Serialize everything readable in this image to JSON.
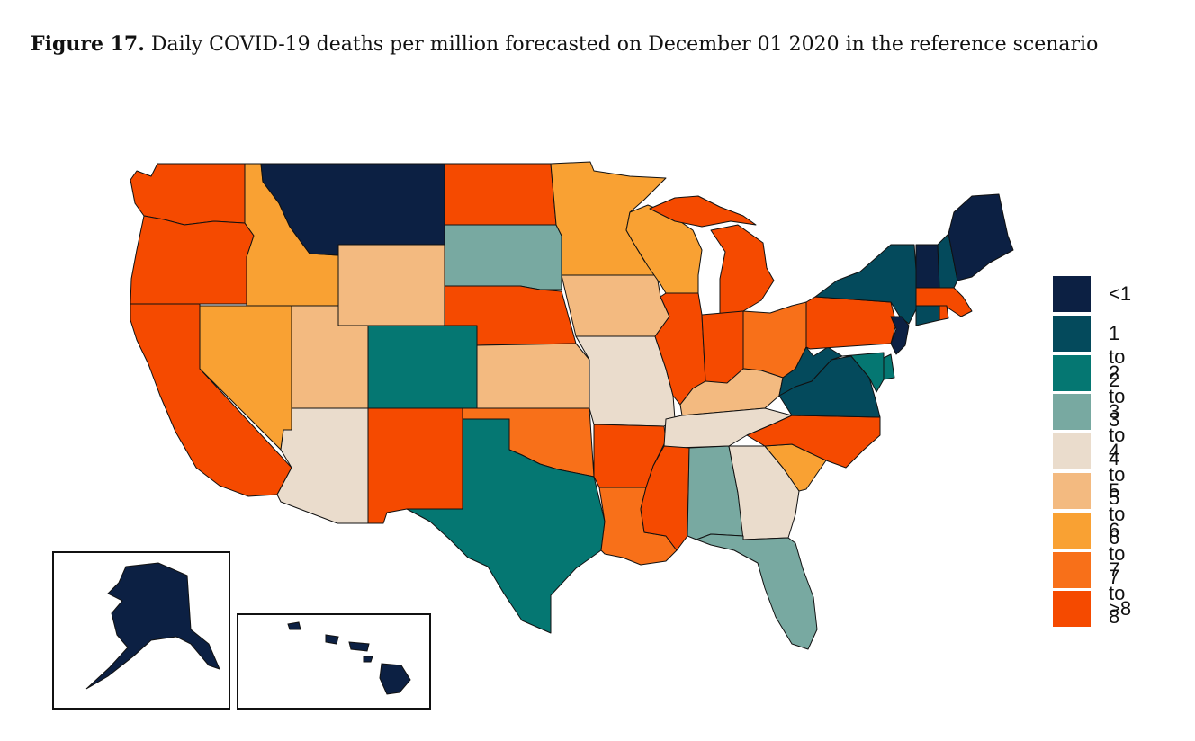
{
  "figure": {
    "label": "Figure 17.",
    "title": "Daily COVID-19 deaths per million forecasted on December 01 2020 in the reference scenario"
  },
  "legend": [
    {
      "label": "<1",
      "color": "#0c2043"
    },
    {
      "label": "1 to 2",
      "color": "#044a5c"
    },
    {
      "label": "2 to 3",
      "color": "#057772"
    },
    {
      "label": "3 to 4",
      "color": "#78a9a1"
    },
    {
      "label": "4 to 5",
      "color": "#eadccc"
    },
    {
      "label": "5 to 6",
      "color": "#f3ba80"
    },
    {
      "label": "6 to 7",
      "color": "#f9a133"
    },
    {
      "label": "7 to 8",
      "color": "#f87019"
    },
    {
      "label": ">8",
      "color": "#f54a00"
    }
  ],
  "states": {
    "WA": ">8",
    "OR": ">8",
    "CA": ">8",
    "ID": "6 to 7",
    "NV": "6 to 7",
    "MT": "<1",
    "WY": "5 to 6",
    "UT": "5 to 6",
    "AZ": "4 to 5",
    "CO": "2 to 3",
    "NM": ">8",
    "ND": ">8",
    "SD": "3 to 4",
    "NE": ">8",
    "KS": "5 to 6",
    "OK": "7 to 8",
    "TX": "2 to 3",
    "MN": "6 to 7",
    "IA": "5 to 6",
    "MO": "4 to 5",
    "AR": ">8",
    "LA": "7 to 8",
    "WI": "6 to 7",
    "IL": ">8",
    "MI": ">8",
    "IN": ">8",
    "OH": "7 to 8",
    "KY": "5 to 6",
    "TN": "4 to 5",
    "MS": ">8",
    "AL": "3 to 4",
    "GA": "4 to 5",
    "FL": "3 to 4",
    "SC": "6 to 7",
    "NC": ">8",
    "VA": "1 to 2",
    "WV": "1 to 2",
    "PA": ">8",
    "NY": "1 to 2",
    "VT": "<1",
    "NH": "1 to 2",
    "ME": "<1",
    "MA": ">8",
    "RI": ">8",
    "CT": "1 to 2",
    "NJ": "<1",
    "DE": "2 to 3",
    "MD": "2 to 3",
    "AK": "<1",
    "HI": "<1"
  }
}
